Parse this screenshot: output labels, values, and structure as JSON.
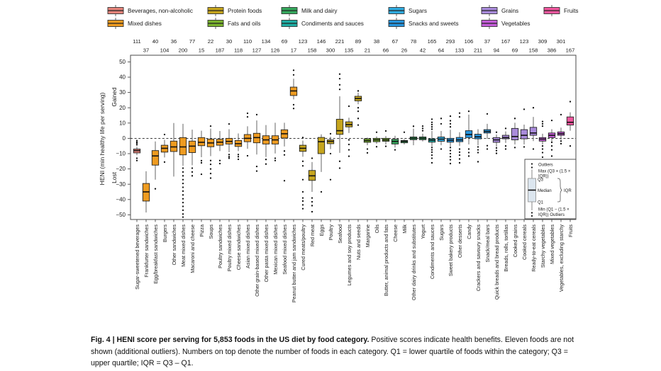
{
  "figure": {
    "caption_bold": "Fig. 4 | HENI score per serving for 5,853 foods in the US diet by food category.",
    "caption_rest": " Positive scores indicate health benefits. Eleven foods are not shown (additional outliers). Numbers on top denote the number of foods in each category. Q1 = lower quartile of foods within the category; Q3 = upper quartile; IQR = Q3 – Q1."
  },
  "chart_data": {
    "type": "boxplot",
    "title": "",
    "ylabel": "HENI (min healthy life per serving)",
    "y_axis": {
      "min": -50,
      "max": 50,
      "ticks": [
        50,
        40,
        30,
        20,
        10,
        0,
        -10,
        -20,
        -30,
        -40,
        -50
      ],
      "gained_label": "Gained",
      "lost_label": "Lost",
      "zero_line": "dashed"
    },
    "legend_position": "top",
    "groups": {
      "beverages": {
        "label": "Beverages, non-alcoholic",
        "color": "#E5847B"
      },
      "mixed": {
        "label": "Mixed dishes",
        "color": "#EE9B20"
      },
      "protein": {
        "label": "Protein foods",
        "color": "#C6A51D"
      },
      "fats": {
        "label": "Fats and oils",
        "color": "#7AB32E"
      },
      "milk": {
        "label": "Milk and dairy",
        "color": "#35A85C"
      },
      "condiments": {
        "label": "Condiments and sauces",
        "color": "#1FADA4"
      },
      "sugars": {
        "label": "Sugars",
        "color": "#30ABDF"
      },
      "snacks": {
        "label": "Snacks and sweets",
        "color": "#2795DD"
      },
      "grains": {
        "label": "Grains",
        "color": "#A98BDB"
      },
      "vegetables": {
        "label": "Vegetables",
        "color": "#C45CD8"
      },
      "fruits": {
        "label": "Fruits",
        "color": "#F0579F"
      }
    },
    "legend_rows": [
      [
        "beverages",
        "protein",
        "milk",
        "sugars",
        "grains",
        "fruits"
      ],
      [
        "mixed",
        "fats",
        "condiments",
        "snacks",
        "vegetables"
      ]
    ],
    "inset_legend": {
      "outliers_top": "Outliers",
      "max_line1": "Max (Q3 + (1.5 ×",
      "max_line2": "IQR))",
      "q3": "Q3",
      "median": "Median",
      "iqr": "IQR",
      "q1": "Q1",
      "min_line1": "Min (Q1 − (1.5 ×",
      "min_line2": "IQR)) Outliers"
    },
    "categories": [
      {
        "label": "Sugar-sweetened beverages",
        "count": 111,
        "group": "beverages",
        "q1": -9.5,
        "median": -8,
        "q3": -7,
        "lo": -11,
        "hi": -5.5,
        "out": [
          -1.5,
          -2.5,
          -3.2,
          -4.2,
          -13,
          -14.5
        ]
      },
      {
        "label": "Frankfurter sandwiches",
        "count": 37,
        "group": "mixed",
        "q1": -41,
        "median": -35,
        "q3": -29.5,
        "lo": -48.5,
        "hi": -21.5,
        "out": []
      },
      {
        "label": "Egg/breakfast sandwiches",
        "count": 40,
        "group": "mixed",
        "q1": -17.5,
        "median": -11.5,
        "q3": -8,
        "lo": -27,
        "hi": -2,
        "out": [
          -33
        ]
      },
      {
        "label": "Burgers",
        "count": 104,
        "group": "mixed",
        "q1": -9,
        "median": -6.5,
        "q3": -4.5,
        "lo": -12.5,
        "hi": -1,
        "out": [
          2.5,
          -15.5
        ]
      },
      {
        "label": "Other sandwiches",
        "count": 36,
        "group": "mixed",
        "q1": -8.6,
        "median": -5.6,
        "q3": -1.8,
        "lo": -25,
        "hi": 10,
        "out": []
      },
      {
        "label": "Meat mixed dishes",
        "count": 200,
        "group": "mixed",
        "q1": -10.8,
        "median": -5.6,
        "q3": 0.5,
        "lo": -18,
        "hi": 9.5,
        "out": [
          -19.5,
          -22,
          -24.5,
          -27,
          -29.5,
          -32,
          -34.5,
          -37,
          -39.5,
          -42,
          -44.5,
          -47,
          -49.5,
          -51.5
        ]
      },
      {
        "label": "Macaroni and cheese",
        "count": 77,
        "group": "mixed",
        "q1": -9.3,
        "median": -5.1,
        "q3": -1.8,
        "lo": -17.6,
        "hi": 5.7,
        "out": [
          -19.5,
          -22,
          -24.5
        ]
      },
      {
        "label": "Pizza",
        "count": 15,
        "group": "mixed",
        "q1": -4.8,
        "median": -2.6,
        "q3": 0.5,
        "lo": -12.3,
        "hi": 5,
        "out": [
          -14.6,
          -16,
          -23.5
        ]
      },
      {
        "label": "Soups",
        "count": 22,
        "group": "mixed",
        "q1": -5.5,
        "median": -3,
        "q3": -0.5,
        "lo": -11.6,
        "hi": 6.3,
        "out": [
          8,
          -14.5,
          -17,
          -20,
          -23,
          -26
        ]
      },
      {
        "label": "Poultry sandwiches",
        "count": 187,
        "group": "mixed",
        "q1": -4.5,
        "median": -2.5,
        "q3": -0.6,
        "lo": -8.3,
        "hi": 4.8,
        "out": [
          -14.5,
          -16.5
        ]
      },
      {
        "label": "Poultry mixed dishes",
        "count": 30,
        "group": "mixed",
        "q1": -3.7,
        "median": -2,
        "q3": 0,
        "lo": -9.1,
        "hi": 6,
        "out": [
          9.4,
          -10.6,
          -12,
          -13
        ]
      },
      {
        "label": "Cheese sandwiches",
        "count": 118,
        "group": "mixed",
        "q1": -5.3,
        "median": -3.5,
        "q3": -1.4,
        "lo": -8.3,
        "hi": 3.2,
        "out": [
          -10.6,
          -12,
          -13.7
        ]
      },
      {
        "label": "Asian mixed dishes",
        "count": 110,
        "group": "mixed",
        "q1": -2.2,
        "median": 0,
        "q3": 2.5,
        "lo": -6.8,
        "hi": 7.9,
        "out": [
          14,
          16.4,
          -11.4
        ]
      },
      {
        "label": "Other grain-based mixed dishes",
        "count": 127,
        "group": "mixed",
        "q1": -2.9,
        "median": 0.5,
        "q3": 3.3,
        "lo": -10.6,
        "hi": 11.7,
        "out": [
          15.5,
          -18.4,
          -21.4
        ]
      },
      {
        "label": "Other pasta mixed dishes",
        "count": 134,
        "group": "mixed",
        "q1": -3.7,
        "median": -1,
        "q3": 1.7,
        "lo": -12.2,
        "hi": 8.7,
        "out": [
          -13.8,
          -16.8
        ]
      },
      {
        "label": "Mexican mixed dishes",
        "count": 126,
        "group": "mixed",
        "q1": -3.7,
        "median": -1,
        "q3": 1.7,
        "lo": -9.9,
        "hi": 10.2,
        "out": [
          -13,
          -14.5
        ]
      },
      {
        "label": "Seafood mixed dishes",
        "count": 69,
        "group": "mixed",
        "q1": 0.2,
        "median": 3,
        "q3": 5.6,
        "lo": -5.3,
        "hi": 10.2,
        "out": [
          -8.3,
          -10.8,
          -27.7
        ]
      },
      {
        "label": "Peanut butter and jam sandwiches",
        "count": 17,
        "group": "mixed",
        "q1": 28,
        "median": 31,
        "q3": 33.5,
        "lo": 25.5,
        "hi": 39,
        "out": [
          44.5,
          41.5,
          22,
          19.5
        ]
      },
      {
        "label": "Cured meats/poultry",
        "count": 123,
        "group": "protein",
        "q1": -8.5,
        "median": -6.5,
        "q3": -4.5,
        "lo": -12,
        "hi": -1.5,
        "out": [
          0.5,
          -15,
          -18,
          -27,
          -35,
          -39,
          -41,
          -43.5,
          -46
        ]
      },
      {
        "label": "Red meat",
        "count": 158,
        "group": "protein",
        "q1": -27.5,
        "median": -24.5,
        "q3": -21,
        "lo": -35,
        "hi": -15.5,
        "out": [
          -13,
          -39,
          -41.5,
          -44,
          -48
        ]
      },
      {
        "label": "Eggs",
        "count": 146,
        "group": "protein",
        "q1": -10,
        "median": -2.2,
        "q3": 0.6,
        "lo": -22,
        "hi": 2.6,
        "out": [
          -35
        ]
      },
      {
        "label": "Poultry",
        "count": 300,
        "group": "protein",
        "q1": -3.5,
        "median": -2,
        "q3": -1,
        "lo": -7,
        "hi": 1,
        "out": [
          3,
          -10,
          -27
        ]
      },
      {
        "label": "Seafood",
        "count": 221,
        "group": "protein",
        "q1": 2.6,
        "median": 5,
        "q3": 12.5,
        "lo": -9.5,
        "hi": 27.5,
        "out": [
          32,
          35,
          39,
          42,
          -15,
          -19.5
        ]
      },
      {
        "label": "Legumes and soy products",
        "count": 135,
        "group": "protein",
        "q1": 7.5,
        "median": 9,
        "q3": 10.8,
        "lo": 3.5,
        "hi": 13.5,
        "out": [
          21,
          -1,
          -4,
          -7.5,
          -11.7
        ]
      },
      {
        "label": "Nuts and seeds",
        "count": 89,
        "group": "protein",
        "q1": 24.5,
        "median": 26,
        "q3": 27.5,
        "lo": 22.3,
        "hi": 29.8,
        "out": [
          31,
          20,
          17.7,
          13,
          8.7
        ]
      },
      {
        "label": "Margarine",
        "count": 21,
        "group": "fats",
        "q1": -2.6,
        "median": -1.5,
        "q3": -0.3,
        "lo": -4.5,
        "hi": 0.5,
        "out": [
          -7,
          -9.5
        ]
      },
      {
        "label": "Oils",
        "count": 38,
        "group": "fats",
        "q1": -2.2,
        "median": -1,
        "q3": 0,
        "lo": -3.5,
        "hi": 1.2,
        "out": [
          4,
          -5.5
        ]
      },
      {
        "label": "Butter, animal products and fats",
        "count": 66,
        "group": "fats",
        "q1": -1.9,
        "median": -1,
        "q3": 0,
        "lo": -4,
        "hi": 1.5,
        "out": [
          4.8,
          -5.2
        ]
      },
      {
        "label": "Cheese",
        "count": 67,
        "group": "milk",
        "q1": -3.7,
        "median": -2,
        "q3": -0.6,
        "lo": -6,
        "hi": 1.7,
        "out": [
          -7.5
        ]
      },
      {
        "label": "Milk",
        "count": 26,
        "group": "milk",
        "q1": -2.9,
        "median": -2,
        "q3": -1.4,
        "lo": -4,
        "hi": -0.5,
        "out": [
          4
        ]
      },
      {
        "label": "Other dairy drinks and substitutes",
        "count": 78,
        "group": "milk",
        "q1": -0.9,
        "median": 0,
        "q3": 0.9,
        "lo": -4.5,
        "hi": 6.3,
        "out": [
          7.9
        ]
      },
      {
        "label": "Yogurt",
        "count": 42,
        "group": "milk",
        "q1": -0.9,
        "median": 0,
        "q3": 0.9,
        "lo": -2,
        "hi": 3,
        "out": [
          5,
          6.5,
          8
        ]
      },
      {
        "label": "Condiments and sauces",
        "count": 165,
        "group": "condiments",
        "q1": -2.5,
        "median": -1.2,
        "q3": -0.3,
        "lo": -5.2,
        "hi": 4.8,
        "out": [
          6,
          7.5,
          9,
          10.5,
          12.5,
          -6,
          -7.5,
          -9,
          -11,
          -13,
          -16
        ]
      },
      {
        "label": "Sugars",
        "count": 64,
        "group": "sugars",
        "q1": -1.9,
        "median": -0.5,
        "q3": 0.9,
        "lo": -4.5,
        "hi": 4.8,
        "out": [
          9.5,
          13,
          -7
        ]
      },
      {
        "label": "Sweet bakery products",
        "count": 293,
        "group": "snacks",
        "q1": -2.5,
        "median": -1.2,
        "q3": 0,
        "lo": -5.2,
        "hi": 5.6,
        "out": [
          7.5,
          9.5,
          11.5,
          14.5,
          -6,
          -8,
          -10,
          -12,
          -14,
          -16.5
        ]
      },
      {
        "label": "Other desserts",
        "count": 133,
        "group": "snacks",
        "q1": -2.2,
        "median": -1,
        "q3": 0.6,
        "lo": -5,
        "hi": 4,
        "out": [
          14,
          16.5,
          -7,
          -9,
          -11,
          -13.5,
          -16
        ]
      },
      {
        "label": "Candy",
        "count": 106,
        "group": "snacks",
        "q1": 0.5,
        "median": 2.5,
        "q3": 5,
        "lo": -4,
        "hi": 15.5,
        "out": [
          17.7,
          -7,
          -9.3,
          -11.6
        ]
      },
      {
        "label": "Crackers and savoury snacks",
        "count": 211,
        "group": "snacks",
        "q1": -0.3,
        "median": 1,
        "q3": 2.7,
        "lo": -4.5,
        "hi": 6,
        "out": [
          -5.6,
          -7.5,
          -9.3,
          -15.3
        ]
      },
      {
        "label": "Snack/meal bars",
        "count": 37,
        "group": "snacks",
        "q1": 3.5,
        "median": 4.5,
        "q3": 5.7,
        "lo": -0.3,
        "hi": 9.5,
        "out": [
          16,
          -4.8,
          -7
        ]
      },
      {
        "label": "Quick breads and bread products",
        "count": 94,
        "group": "grains",
        "q1": -2.6,
        "median": -1,
        "q3": 0.5,
        "lo": -5.5,
        "hi": 2.5,
        "out": [
          4,
          -6.3,
          -8,
          -9.8
        ]
      },
      {
        "label": "Breads, rolls, tortillas",
        "count": 167,
        "group": "grains",
        "q1": -0.3,
        "median": 0.5,
        "q3": 2,
        "lo": -3,
        "hi": 4.5,
        "out": [
          6.5,
          -5,
          -7
        ]
      },
      {
        "label": "Cooked grains",
        "count": 69,
        "group": "grains",
        "q1": -1,
        "median": 1.2,
        "q3": 6.5,
        "lo": -4,
        "hi": 10.2,
        "out": [
          13,
          -6
        ]
      },
      {
        "label": "Cooked cereals",
        "count": 123,
        "group": "grains",
        "q1": -0.3,
        "median": 2,
        "q3": 5.7,
        "lo": -4,
        "hi": 9,
        "out": [
          19,
          -5.6
        ]
      },
      {
        "label": "Ready-to-eat cereals",
        "count": 158,
        "group": "grains",
        "q1": 2,
        "median": 3.5,
        "q3": 7.2,
        "lo": -1.8,
        "hi": 14,
        "out": [
          20,
          -7
        ]
      },
      {
        "label": "Starchy vegetables",
        "count": 309,
        "group": "vegetables",
        "q1": -1.8,
        "median": -0.5,
        "q3": 0.5,
        "lo": -4,
        "hi": 3,
        "out": [
          11,
          9.5,
          8,
          -5,
          -7,
          -9.3,
          -12.3
        ]
      },
      {
        "label": "Mixed vegetables",
        "count": 386,
        "group": "vegetables",
        "q1": 0.5,
        "median": 2,
        "q3": 3.5,
        "lo": -2,
        "hi": 6,
        "out": [
          11.7,
          -2.6,
          -5,
          -7.5,
          -11.6
        ]
      },
      {
        "label": "Vegetables, excluding starchy",
        "count": 301,
        "group": "vegetables",
        "q1": 2,
        "median": 3,
        "q3": 4.2,
        "lo": -1,
        "hi": 7,
        "out": [
          15.5,
          -1.8,
          -3.5
        ]
      },
      {
        "label": "Fruits",
        "count": 167,
        "group": "fruits",
        "q1": 8.7,
        "median": 10.5,
        "q3": 14,
        "lo": 5,
        "hi": 17,
        "out": [
          24,
          -5
        ]
      }
    ]
  }
}
